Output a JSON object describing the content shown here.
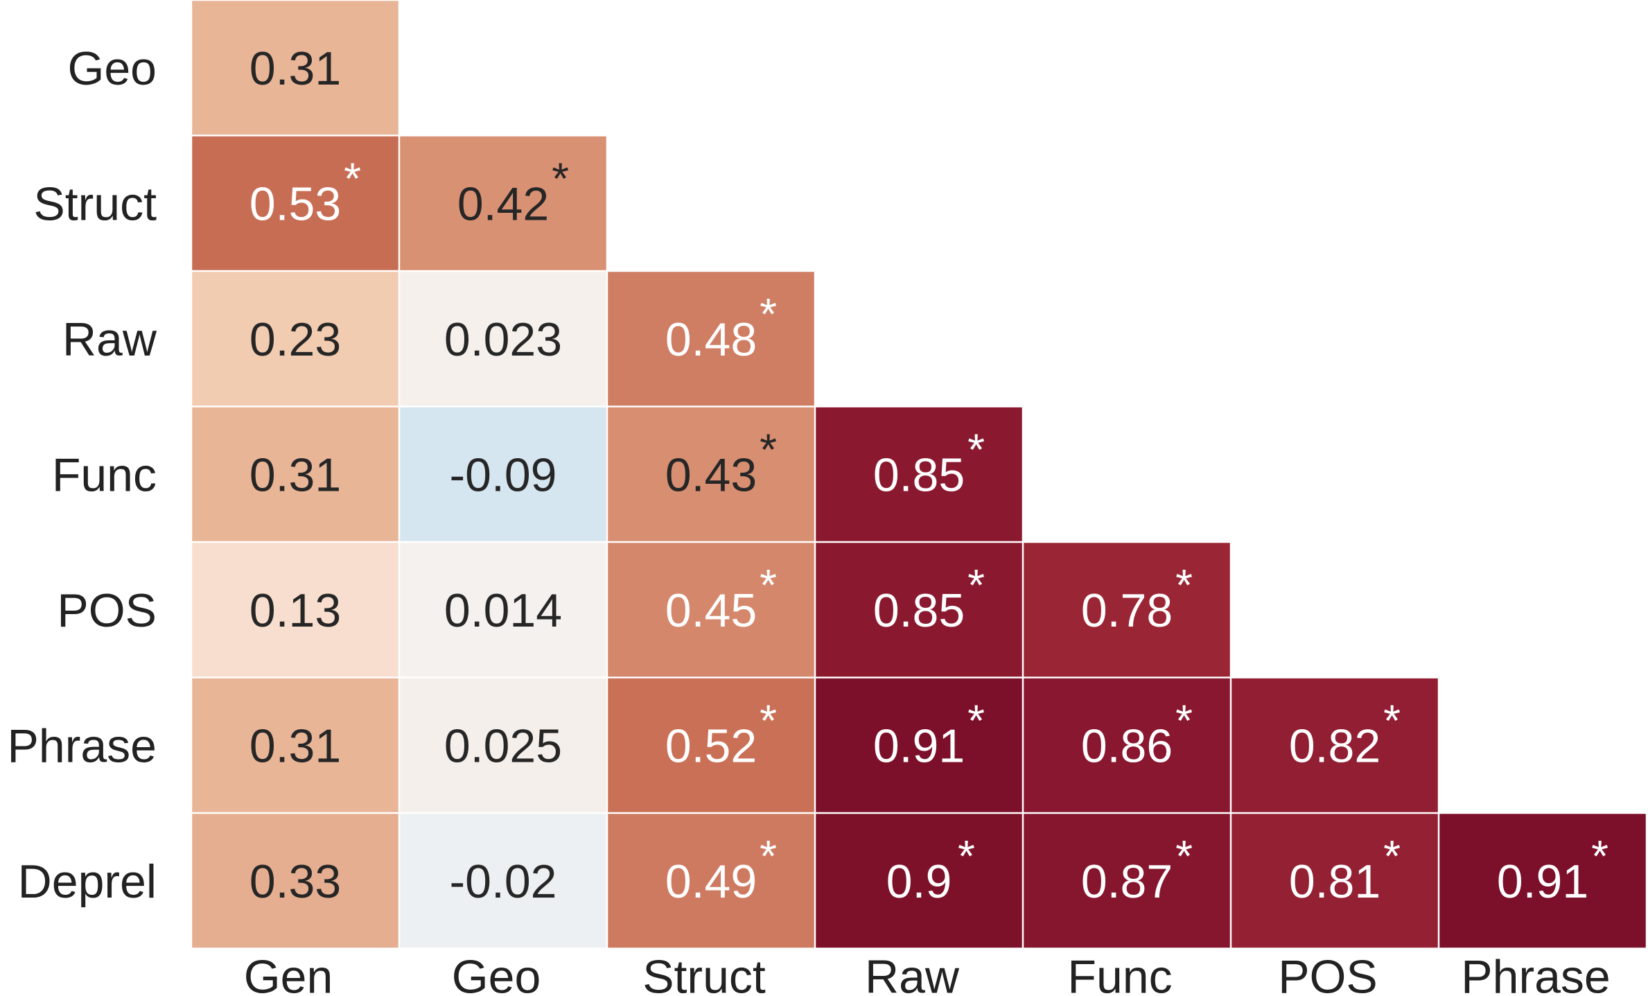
{
  "chart_data": {
    "type": "heatmap",
    "title": "",
    "xlabel": "",
    "ylabel": "",
    "rows": [
      "Geo",
      "Struct",
      "Raw",
      "Func",
      "POS",
      "Phrase",
      "Deprel"
    ],
    "columns": [
      "Gen",
      "Geo",
      "Struct",
      "Raw",
      "Func",
      "POS",
      "Phrase"
    ],
    "values": [
      [
        "0.31"
      ],
      [
        "0.53",
        "0.42"
      ],
      [
        "0.23",
        "0.023",
        "0.48"
      ],
      [
        "0.31",
        "-0.09",
        "0.43",
        "0.85"
      ],
      [
        "0.13",
        "0.014",
        "0.45",
        "0.85",
        "0.78"
      ],
      [
        "0.31",
        "0.025",
        "0.52",
        "0.91",
        "0.86",
        "0.82"
      ],
      [
        "0.33",
        "-0.02",
        "0.49",
        "0.9",
        "0.87",
        "0.81",
        "0.91"
      ]
    ],
    "significant": [
      [
        false
      ],
      [
        true,
        true
      ],
      [
        false,
        false,
        true
      ],
      [
        false,
        false,
        true,
        true
      ],
      [
        false,
        false,
        true,
        true,
        true
      ],
      [
        false,
        false,
        true,
        true,
        true,
        true
      ],
      [
        false,
        false,
        true,
        true,
        true,
        true,
        true
      ]
    ],
    "significance_marker": "*",
    "lower_triangle": true,
    "colormap": "diverging blue-white-red",
    "vmin": -1,
    "vmax": 1,
    "colorbar": false
  }
}
